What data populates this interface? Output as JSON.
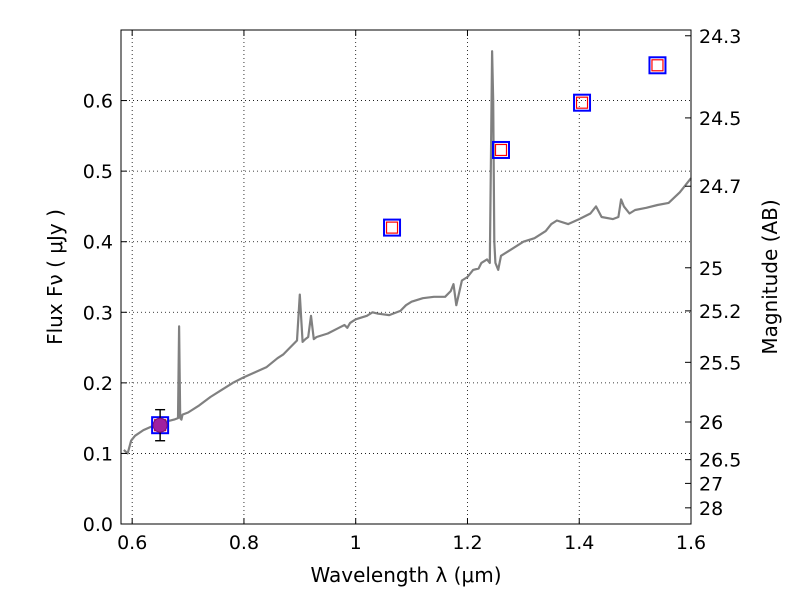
{
  "chart_data": {
    "type": "line",
    "xlabel": "Wavelength  λ (μm)",
    "ylabel": "Flux  Fν  ( μJy )",
    "ylabel_right": "Magnitude (AB)",
    "xlim": [
      0.58,
      1.6
    ],
    "ylim": [
      0.0,
      0.7
    ],
    "grid": true,
    "x_ticks": [
      0.6,
      0.8,
      1.0,
      1.2,
      1.4,
      1.6
    ],
    "x_tick_labels": [
      "0.6",
      "0.8",
      "1",
      "1.2",
      "1.4",
      "1.6"
    ],
    "y_ticks": [
      0.0,
      0.1,
      0.2,
      0.3,
      0.4,
      0.5,
      0.6
    ],
    "y_tick_labels": [
      "0.0",
      "0.1",
      "0.2",
      "0.3",
      "0.4",
      "0.5",
      "0.6"
    ],
    "right_ticks": [
      24.3,
      24.5,
      24.7,
      25.0,
      25.2,
      25.5,
      26.0,
      26.5,
      27.0,
      28.0
    ],
    "right_tick_labels": [
      "24.3",
      "24.5",
      "24.7",
      "25",
      "25.2",
      "25.5",
      "26",
      "26.5",
      "27",
      "28"
    ],
    "series": [
      {
        "name": "spectrum",
        "kind": "line",
        "color": "#808080",
        "x": [
          0.585,
          0.592,
          0.598,
          0.605,
          0.62,
          0.64,
          0.66,
          0.675,
          0.682,
          0.684,
          0.686,
          0.688,
          0.69,
          0.7,
          0.72,
          0.74,
          0.76,
          0.78,
          0.8,
          0.82,
          0.84,
          0.86,
          0.87,
          0.88,
          0.895,
          0.9,
          0.905,
          0.91,
          0.915,
          0.92,
          0.925,
          0.93,
          0.95,
          0.97,
          0.98,
          0.985,
          0.99,
          1.0,
          1.02,
          1.03,
          1.04,
          1.06,
          1.08,
          1.09,
          1.1,
          1.12,
          1.14,
          1.16,
          1.17,
          1.175,
          1.18,
          1.19,
          1.2,
          1.21,
          1.22,
          1.225,
          1.235,
          1.24,
          1.244,
          1.246,
          1.248,
          1.25,
          1.255,
          1.26,
          1.27,
          1.28,
          1.3,
          1.32,
          1.34,
          1.35,
          1.36,
          1.38,
          1.4,
          1.42,
          1.43,
          1.44,
          1.46,
          1.47,
          1.475,
          1.48,
          1.49,
          1.5,
          1.52,
          1.54,
          1.56,
          1.58,
          1.6
        ],
        "y": [
          0.105,
          0.1,
          0.118,
          0.125,
          0.133,
          0.14,
          0.145,
          0.148,
          0.15,
          0.28,
          0.15,
          0.148,
          0.155,
          0.158,
          0.168,
          0.18,
          0.19,
          0.2,
          0.208,
          0.215,
          0.222,
          0.235,
          0.24,
          0.248,
          0.26,
          0.325,
          0.258,
          0.262,
          0.265,
          0.295,
          0.262,
          0.265,
          0.27,
          0.278,
          0.282,
          0.278,
          0.285,
          0.29,
          0.295,
          0.3,
          0.298,
          0.296,
          0.302,
          0.31,
          0.315,
          0.32,
          0.322,
          0.322,
          0.33,
          0.34,
          0.31,
          0.345,
          0.35,
          0.36,
          0.362,
          0.37,
          0.375,
          0.37,
          0.67,
          0.6,
          0.4,
          0.37,
          0.36,
          0.38,
          0.385,
          0.39,
          0.4,
          0.405,
          0.415,
          0.425,
          0.43,
          0.425,
          0.432,
          0.44,
          0.45,
          0.435,
          0.432,
          0.435,
          0.46,
          0.45,
          0.44,
          0.445,
          0.448,
          0.452,
          0.455,
          0.47,
          0.49
        ]
      },
      {
        "name": "photometry",
        "kind": "open-squares",
        "x": [
          0.65,
          1.065,
          1.26,
          1.405,
          1.54
        ],
        "y": [
          0.14,
          0.42,
          0.53,
          0.597,
          0.65
        ],
        "outer_color": "#0000ff",
        "inner_color": "#ff0000"
      },
      {
        "name": "measured-point",
        "kind": "point-with-errorbar",
        "x": 0.65,
        "y": 0.14,
        "yerr": 0.022,
        "color": "#a020a0"
      }
    ]
  }
}
